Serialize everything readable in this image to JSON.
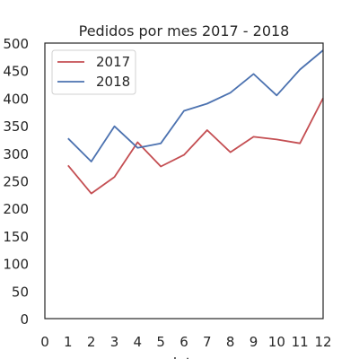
{
  "chart_data": {
    "type": "line",
    "title": "Pedidos por mes 2017 - 2018",
    "xlabel": "date",
    "ylabel": "",
    "x": [
      1,
      2,
      3,
      4,
      5,
      6,
      7,
      8,
      9,
      10,
      11,
      12
    ],
    "xlim": [
      0,
      12
    ],
    "ylim": [
      0,
      500
    ],
    "xticks": [
      0,
      1,
      2,
      3,
      4,
      5,
      6,
      7,
      8,
      9,
      10,
      11,
      12
    ],
    "yticks": [
      0,
      50,
      100,
      150,
      200,
      250,
      300,
      350,
      400,
      450,
      500
    ],
    "grid": false,
    "legend_position": "top-left",
    "series": [
      {
        "name": "2017",
        "color": "#c44e52",
        "values": [
          278,
          227,
          257,
          320,
          276,
          297,
          342,
          302,
          330,
          325,
          318,
          400
        ]
      },
      {
        "name": "2018",
        "color": "#4c72b0",
        "values": [
          327,
          285,
          349,
          310,
          318,
          377,
          390,
          410,
          444,
          405,
          452,
          487
        ]
      }
    ]
  }
}
